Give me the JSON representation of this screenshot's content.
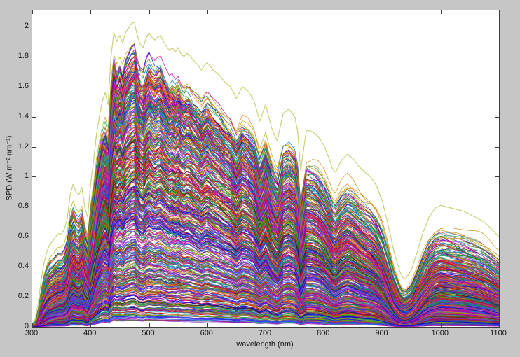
{
  "figure": {
    "bg_color": "#c6c6c6",
    "plot_bg_color": "#ffffff",
    "axis_color": "#3c3c3c",
    "tick_label_color": "#141414"
  },
  "chart_data": {
    "type": "line",
    "title": "",
    "xlabel": "wavelength (nm)",
    "ylabel": "SPD (W m⁻² nm⁻¹)",
    "xlim": [
      300,
      1100
    ],
    "ylim": [
      0,
      2.107
    ],
    "xticks": [
      300,
      400,
      500,
      600,
      700,
      800,
      900,
      1000,
      1100
    ],
    "yticks": [
      0,
      0.2,
      0.4,
      0.6,
      0.8,
      1.0,
      1.2,
      1.4,
      1.6,
      1.8,
      2.0
    ],
    "ytick_labels": [
      "0",
      "0.2",
      "0.4",
      "0.6",
      "0.8",
      "1",
      "1.2",
      "1.4",
      "1.6",
      "1.8",
      "2"
    ],
    "grid": false,
    "legend": null,
    "description": "Ensemble of hundreds of measured daylight spectral power distributions (300-1100 nm) plotted on top of each other in many colors; the upper pale-yellow curve is the maximum envelope (~2.02 W m-2 nm-1 at ~475 nm) with atmospheric absorption dips near 690, 720, 760, 820 and 930-950 nm.",
    "envelope_color": "#cbd077",
    "envelope": {
      "x": [
        300,
        305,
        310,
        315,
        320,
        325,
        330,
        335,
        340,
        345,
        350,
        355,
        360,
        365,
        370,
        375,
        380,
        385,
        390,
        395,
        400,
        405,
        410,
        415,
        420,
        425,
        430,
        435,
        440,
        445,
        450,
        455,
        460,
        465,
        470,
        475,
        480,
        485,
        490,
        495,
        500,
        505,
        510,
        515,
        520,
        525,
        530,
        535,
        540,
        545,
        550,
        555,
        560,
        565,
        570,
        575,
        580,
        585,
        590,
        595,
        600,
        610,
        620,
        630,
        640,
        650,
        660,
        670,
        680,
        690,
        700,
        710,
        715,
        720,
        725,
        730,
        740,
        750,
        755,
        760,
        765,
        770,
        780,
        790,
        800,
        810,
        815,
        820,
        830,
        840,
        850,
        860,
        870,
        880,
        890,
        900,
        910,
        920,
        930,
        935,
        940,
        950,
        960,
        970,
        980,
        990,
        1000,
        1010,
        1020,
        1030,
        1040,
        1050,
        1060,
        1070,
        1080,
        1090,
        1100
      ],
      "y": [
        0.02,
        0.05,
        0.15,
        0.3,
        0.42,
        0.5,
        0.55,
        0.57,
        0.6,
        0.62,
        0.62,
        0.65,
        0.72,
        0.88,
        0.95,
        0.9,
        0.88,
        0.93,
        0.8,
        0.73,
        0.95,
        1.1,
        1.28,
        1.4,
        1.5,
        1.56,
        1.48,
        1.8,
        1.96,
        1.9,
        1.94,
        1.89,
        1.96,
        1.99,
        2.02,
        2.03,
        1.94,
        1.88,
        1.86,
        1.92,
        1.96,
        1.93,
        1.91,
        1.93,
        1.94,
        1.9,
        1.87,
        1.84,
        1.86,
        1.83,
        1.86,
        1.82,
        1.8,
        1.82,
        1.81,
        1.78,
        1.76,
        1.74,
        1.71,
        1.74,
        1.76,
        1.71,
        1.68,
        1.63,
        1.6,
        1.52,
        1.6,
        1.57,
        1.51,
        1.37,
        1.48,
        1.33,
        1.28,
        1.24,
        1.33,
        1.42,
        1.45,
        1.4,
        1.3,
        1.04,
        1.18,
        1.31,
        1.3,
        1.27,
        1.21,
        1.11,
        1.05,
        1.03,
        1.11,
        1.15,
        1.12,
        1.07,
        1.03,
        1.0,
        0.94,
        0.84,
        0.68,
        0.5,
        0.37,
        0.33,
        0.32,
        0.38,
        0.5,
        0.63,
        0.73,
        0.79,
        0.81,
        0.8,
        0.79,
        0.78,
        0.77,
        0.75,
        0.73,
        0.71,
        0.68,
        0.64,
        0.6
      ]
    },
    "palette": [
      "#0000dd",
      "#2233ee",
      "#4455ff",
      "#0077cc",
      "#00999b",
      "#00aaaa",
      "#007f00",
      "#119933",
      "#55aa00",
      "#888800",
      "#aaaa00",
      "#cc8800",
      "#ee7711",
      "#cc2200",
      "#dd0000",
      "#bb0044",
      "#cc0099",
      "#bb22bb",
      "#8800cc",
      "#6633cc",
      "#222222",
      "#aa3366"
    ],
    "ensemble": {
      "count": 520,
      "seed": 7,
      "scale_min": 0.02,
      "scale_max": 0.89,
      "scale_power": 1.15,
      "dip_exponent_max": 2.1,
      "tilt_max": 0.09,
      "step_nm": 2.5,
      "line_width": 0.7
    }
  }
}
